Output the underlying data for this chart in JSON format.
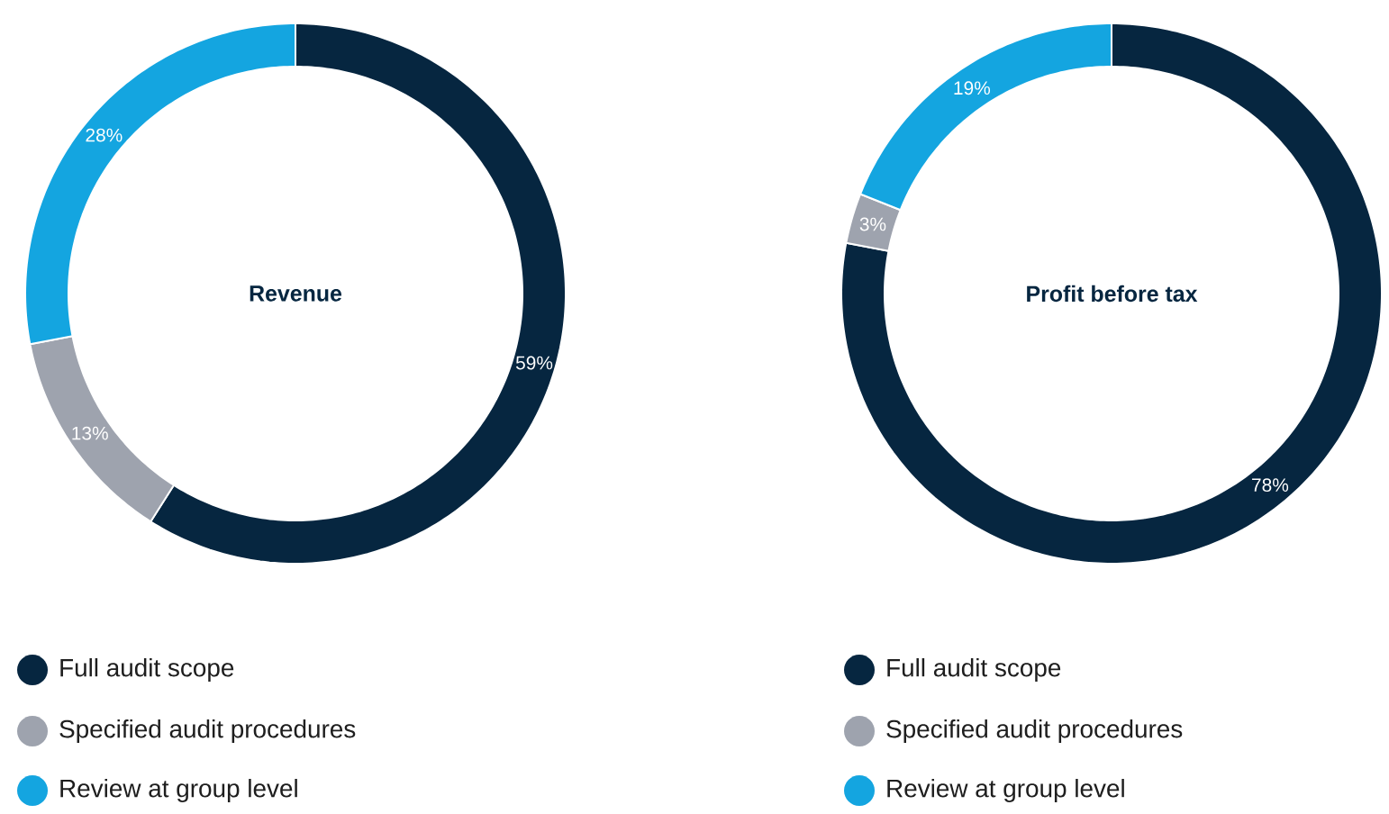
{
  "chart_data": [
    {
      "type": "donut",
      "title": "Revenue",
      "categories": [
        "Full audit scope",
        "Specified audit procedures",
        "Review at group level"
      ],
      "values": [
        59,
        13,
        28
      ],
      "value_labels": [
        "59%",
        "13%",
        "28%"
      ],
      "colors": [
        "#062640",
        "#9ea3ae",
        "#14a5e0"
      ],
      "legend": "bottom"
    },
    {
      "type": "donut",
      "title": "Profit before tax",
      "categories": [
        "Full audit scope",
        "Specified audit procedures",
        "Review at group level"
      ],
      "values": [
        78,
        3,
        19
      ],
      "value_labels": [
        "78%",
        "3%",
        "19%"
      ],
      "colors": [
        "#062640",
        "#9ea3ae",
        "#14a5e0"
      ],
      "legend": "bottom"
    }
  ]
}
